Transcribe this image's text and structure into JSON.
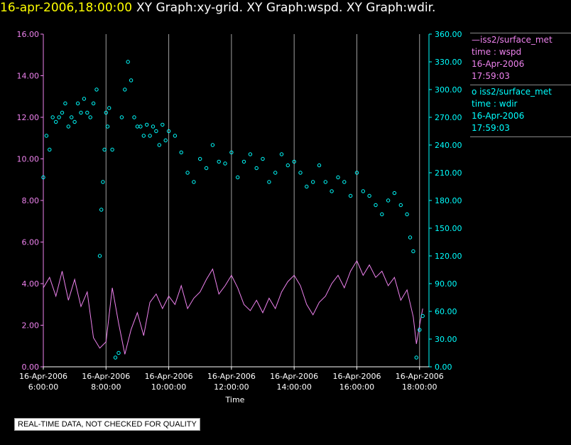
{
  "title": {
    "datetime": "16-apr-2006,18:00:00",
    "graphs": "XY Graph:xy-grid.  XY Graph:wspd.  XY Graph:wdir."
  },
  "colors": {
    "wspd": "#ee82ee",
    "wdir": "#00ffff",
    "grid": "#a0a0a0",
    "axis_text_white": "#ffffff",
    "title_date": "#ffff00"
  },
  "legend": [
    {
      "marker": "line",
      "name": "—iss2/surface_met",
      "lines": [
        "time : wspd",
        "16-Apr-2006",
        "17:59:03"
      ]
    },
    {
      "marker": "circle",
      "name": "o  iss2/surface_met",
      "lines": [
        "time : wdir",
        "16-Apr-2006",
        "17:59:03"
      ]
    }
  ],
  "quality_note": "REAL-TIME DATA, NOT CHECKED FOR QUALITY",
  "chart_data": [
    {
      "type": "line",
      "name": "wspd",
      "xlabel": "Time",
      "xlim": [
        6.0,
        18.3
      ],
      "ylim": [
        0,
        16
      ],
      "y_ticks": [
        "0.00",
        "2.00",
        "4.00",
        "6.00",
        "8.00",
        "10.00",
        "12.00",
        "14.00",
        "16.00"
      ],
      "x_ticks": [
        {
          "v": 6.0,
          "date": "16-Apr-2006",
          "time": "6:00:00"
        },
        {
          "v": 8.0,
          "date": "16-Apr-2006",
          "time": "8:00:00"
        },
        {
          "v": 10.0,
          "date": "16-Apr-2006",
          "time": "10:00:00"
        },
        {
          "v": 12.0,
          "date": "16-Apr-2006",
          "time": "12:00:00"
        },
        {
          "v": 14.0,
          "date": "16-Apr-2006",
          "time": "14:00:00"
        },
        {
          "v": 16.0,
          "date": "16-Apr-2006",
          "time": "16:00:00"
        },
        {
          "v": 18.0,
          "date": "16-Apr-2006",
          "time": "18:00:00"
        }
      ],
      "x": [
        6.0,
        6.2,
        6.4,
        6.6,
        6.8,
        7.0,
        7.2,
        7.4,
        7.6,
        7.8,
        8.0,
        8.2,
        8.4,
        8.6,
        8.8,
        9.0,
        9.2,
        9.4,
        9.6,
        9.8,
        10.0,
        10.2,
        10.4,
        10.6,
        10.8,
        11.0,
        11.2,
        11.4,
        11.6,
        11.8,
        12.0,
        12.2,
        12.4,
        12.6,
        12.8,
        13.0,
        13.2,
        13.4,
        13.6,
        13.8,
        14.0,
        14.2,
        14.4,
        14.6,
        14.8,
        15.0,
        15.2,
        15.4,
        15.6,
        15.8,
        16.0,
        16.2,
        16.4,
        16.6,
        16.8,
        17.0,
        17.2,
        17.4,
        17.6,
        17.8,
        17.9,
        18.0,
        18.1
      ],
      "y": [
        3.8,
        4.3,
        3.4,
        4.6,
        3.2,
        4.2,
        2.9,
        3.6,
        1.4,
        0.9,
        1.2,
        3.8,
        2.1,
        0.6,
        1.8,
        2.6,
        1.5,
        3.1,
        3.5,
        2.8,
        3.4,
        3.0,
        3.9,
        2.8,
        3.3,
        3.6,
        4.2,
        4.7,
        3.5,
        3.9,
        4.4,
        3.8,
        3.0,
        2.7,
        3.2,
        2.6,
        3.3,
        2.8,
        3.6,
        4.1,
        4.4,
        3.9,
        3.0,
        2.5,
        3.1,
        3.4,
        4.0,
        4.4,
        3.8,
        4.6,
        5.1,
        4.4,
        4.9,
        4.3,
        4.6,
        3.9,
        4.3,
        3.2,
        3.7,
        2.4,
        1.1,
        2.0,
        2.8
      ]
    },
    {
      "type": "scatter",
      "name": "wdir",
      "ylim": [
        0,
        360
      ],
      "y_ticks": [
        "0.00",
        "30.00",
        "60.00",
        "90.00",
        "120.00",
        "150.00",
        "180.00",
        "210.00",
        "240.00",
        "270.00",
        "300.00",
        "330.00",
        "360.00"
      ],
      "x": [
        6.0,
        6.1,
        6.2,
        6.3,
        6.4,
        6.5,
        6.6,
        6.7,
        6.8,
        6.9,
        7.0,
        7.1,
        7.2,
        7.3,
        7.4,
        7.5,
        7.6,
        7.7,
        7.8,
        7.85,
        7.9,
        7.95,
        8.0,
        8.05,
        8.1,
        8.2,
        8.3,
        8.4,
        8.5,
        8.6,
        8.7,
        8.8,
        8.9,
        9.0,
        9.1,
        9.2,
        9.3,
        9.4,
        9.5,
        9.6,
        9.7,
        9.8,
        9.9,
        10.0,
        10.2,
        10.4,
        10.6,
        10.8,
        11.0,
        11.2,
        11.4,
        11.6,
        11.8,
        12.0,
        12.2,
        12.4,
        12.6,
        12.8,
        13.0,
        13.2,
        13.4,
        13.6,
        13.8,
        14.0,
        14.2,
        14.4,
        14.6,
        14.8,
        15.0,
        15.2,
        15.4,
        15.6,
        15.8,
        16.0,
        16.2,
        16.4,
        16.6,
        16.8,
        17.0,
        17.2,
        17.4,
        17.6,
        17.7,
        17.8,
        17.9,
        18.0,
        18.1
      ],
      "y": [
        205,
        250,
        235,
        270,
        265,
        270,
        275,
        285,
        260,
        270,
        265,
        285,
        275,
        290,
        275,
        270,
        285,
        300,
        120,
        170,
        200,
        235,
        275,
        260,
        280,
        235,
        10,
        15,
        270,
        300,
        330,
        310,
        270,
        260,
        260,
        250,
        262,
        250,
        260,
        255,
        240,
        262,
        245,
        255,
        250,
        232,
        210,
        200,
        225,
        215,
        240,
        222,
        220,
        232,
        205,
        222,
        230,
        215,
        225,
        200,
        210,
        230,
        218,
        222,
        210,
        195,
        200,
        218,
        200,
        190,
        205,
        200,
        185,
        210,
        190,
        185,
        175,
        165,
        180,
        188,
        175,
        165,
        140,
        125,
        10,
        40,
        55
      ]
    }
  ]
}
